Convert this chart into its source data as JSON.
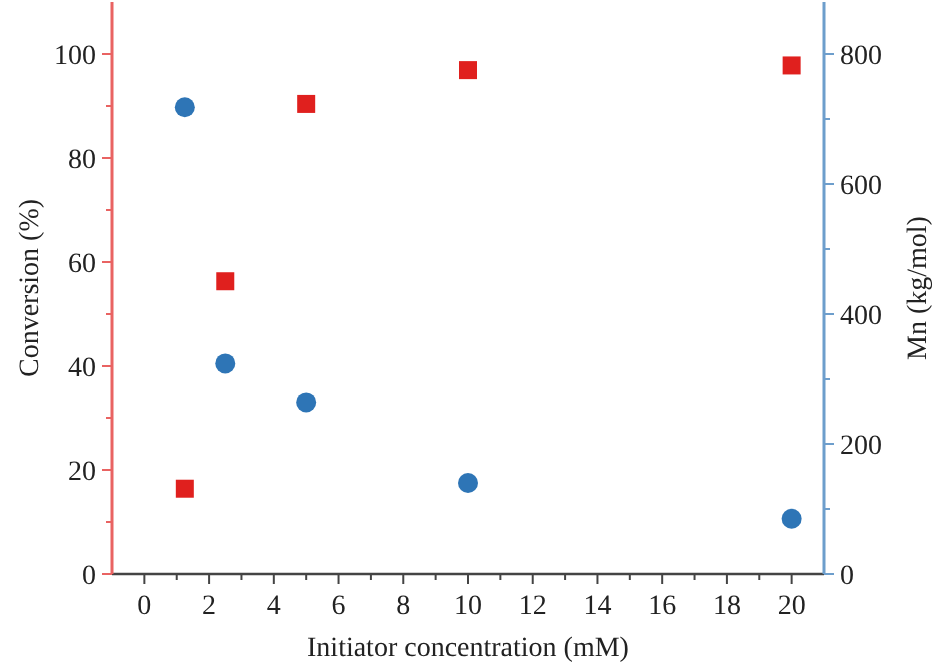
{
  "chart_data": {
    "type": "scatter",
    "xlabel": "Initiator concentration (mM)",
    "ylabel": "Conversion (%)",
    "y2label": "Mn (kg/mol)",
    "x": [
      1.25,
      2.5,
      5,
      10,
      20
    ],
    "series": [
      {
        "color": "#e0201e",
        "marker": "square",
        "values": [
          16.4,
          56.3,
          90.4,
          96.9,
          97.8
        ]
      },
      {
        "color": "#2e75b6",
        "marker": "circle",
        "axis": "y2",
        "values": [
          718,
          324,
          264,
          140,
          85
        ]
      }
    ],
    "xlim": [
      -1,
      21
    ],
    "xticks": [
      0,
      {
        "value": 1,
        "label": null
      },
      2,
      {
        "value": 3,
        "label": null
      },
      4,
      {
        "value": 5,
        "label": null
      },
      6,
      {
        "value": 7,
        "label": null
      },
      8,
      {
        "value": 9,
        "label": null
      },
      10,
      {
        "value": 11,
        "label": null
      },
      12,
      {
        "value": 13,
        "label": null
      },
      14,
      {
        "value": 15,
        "label": null
      },
      16,
      {
        "value": 17,
        "label": null
      },
      18,
      {
        "value": 19,
        "label": null
      },
      20
    ],
    "ylim": [
      0,
      110
    ],
    "yticks": [
      0,
      {
        "value": 10,
        "label": null
      },
      20,
      {
        "value": 30,
        "label": null
      },
      40,
      {
        "value": 50,
        "label": null
      },
      60,
      {
        "value": 70,
        "label": null
      },
      80,
      {
        "value": 90,
        "label": null
      },
      100
    ],
    "y2lim": [
      0,
      880
    ],
    "y2ticks": [
      0,
      {
        "value": 100,
        "label": null
      },
      200,
      {
        "value": 300,
        "label": null
      },
      400,
      {
        "value": 500,
        "label": null
      },
      600,
      {
        "value": 700,
        "label": null
      },
      800
    ]
  }
}
